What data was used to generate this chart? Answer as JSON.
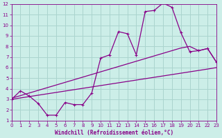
{
  "xlabel": "Windchill (Refroidissement éolien,°C)",
  "bg_color": "#cceee8",
  "grid_color": "#aad4ce",
  "line_color": "#880088",
  "x_data": [
    0,
    1,
    2,
    3,
    4,
    5,
    6,
    7,
    8,
    9,
    10,
    11,
    12,
    13,
    14,
    15,
    16,
    17,
    18,
    19,
    20,
    21,
    22,
    23
  ],
  "y_main": [
    3.0,
    3.8,
    3.3,
    2.6,
    1.5,
    1.5,
    2.7,
    2.5,
    2.5,
    3.6,
    6.9,
    7.2,
    9.4,
    9.2,
    7.2,
    11.3,
    11.4,
    12.1,
    11.7,
    9.3,
    7.5,
    7.6,
    7.8,
    6.5
  ],
  "y_upper": [
    3.1,
    3.35,
    3.6,
    3.85,
    4.1,
    4.35,
    4.6,
    4.85,
    5.1,
    5.35,
    5.6,
    5.85,
    6.1,
    6.35,
    6.6,
    6.85,
    7.1,
    7.35,
    7.6,
    7.85,
    8.0,
    7.6,
    7.8,
    6.5
  ],
  "y_lower": [
    3.0,
    3.13,
    3.26,
    3.39,
    3.52,
    3.65,
    3.78,
    3.91,
    4.04,
    4.17,
    4.3,
    4.43,
    4.56,
    4.69,
    4.82,
    4.95,
    5.08,
    5.21,
    5.34,
    5.47,
    5.6,
    5.73,
    5.86,
    6.0
  ],
  "ylim": [
    1,
    12
  ],
  "xlim": [
    0,
    23
  ],
  "yticks": [
    1,
    2,
    3,
    4,
    5,
    6,
    7,
    8,
    9,
    10,
    11,
    12
  ],
  "xticks": [
    0,
    1,
    2,
    3,
    4,
    5,
    6,
    7,
    8,
    9,
    10,
    11,
    12,
    13,
    14,
    15,
    16,
    17,
    18,
    19,
    20,
    21,
    22,
    23
  ]
}
